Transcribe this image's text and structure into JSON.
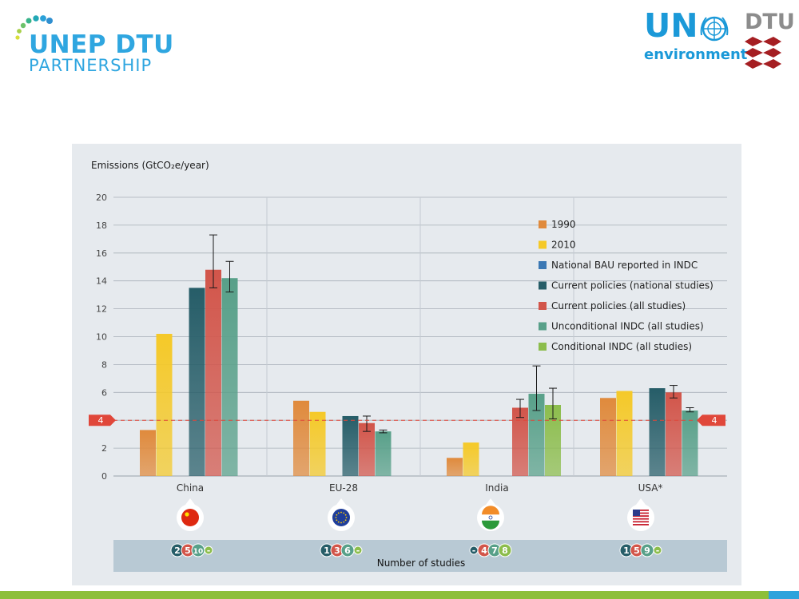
{
  "header": {
    "unep_line1": "UNEP DTU",
    "unep_line2": "PARTNERSHIP",
    "un_text": "UN",
    "env_text": "environment",
    "dtu_text": "DTU"
  },
  "colors": {
    "c1990": "#e08a3c",
    "c2010": "#f5c928",
    "bau": "#3b78b4",
    "cur_nat": "#265d68",
    "cur_all": "#d2554a",
    "uncond": "#58a089",
    "cond": "#8cbd4c",
    "panel": "#e6eaee",
    "grid": "#a8b0b8",
    "ref_line": "#e0473a",
    "studies_band": "#b8c9d4"
  },
  "chart_data": {
    "type": "bar",
    "ylabel": "Emissions (GtCO₂e/year)",
    "ylim": [
      0,
      20
    ],
    "yticks": [
      "0",
      "2",
      "4",
      "6",
      "8",
      "10",
      "12",
      "14",
      "16",
      "18",
      "20"
    ],
    "grid": true,
    "legend_position": "right",
    "categories": [
      "China",
      "EU-28",
      "India",
      "USA*"
    ],
    "series": [
      {
        "key": "c1990",
        "name": "1990",
        "values": [
          3.3,
          5.4,
          1.3,
          5.6
        ]
      },
      {
        "key": "c2010",
        "name": "2010",
        "values": [
          10.2,
          4.6,
          2.4,
          6.1
        ]
      },
      {
        "key": "bau",
        "name": "National BAU reported in INDC",
        "values": [
          null,
          null,
          null,
          null
        ]
      },
      {
        "key": "cur_nat",
        "name": "Current policies (national studies)",
        "values": [
          13.5,
          4.3,
          null,
          6.3
        ]
      },
      {
        "key": "cur_all",
        "name": "Current policies (all studies)",
        "values": [
          14.8,
          3.8,
          4.9,
          6.0
        ]
      },
      {
        "key": "uncond",
        "name": "Unconditional INDC (all studies)",
        "values": [
          14.2,
          3.2,
          5.9,
          4.7
        ]
      },
      {
        "key": "cond",
        "name": "Conditional INDC (all studies)",
        "values": [
          null,
          null,
          5.1,
          null
        ]
      }
    ],
    "error_bars": [
      {
        "category": 0,
        "series": "cur_all",
        "low": 13.5,
        "high": 17.3
      },
      {
        "category": 0,
        "series": "uncond",
        "low": 13.2,
        "high": 15.4
      },
      {
        "category": 1,
        "series": "cur_all",
        "low": 3.2,
        "high": 4.3
      },
      {
        "category": 1,
        "series": "uncond",
        "low": 3.1,
        "high": 3.3
      },
      {
        "category": 2,
        "series": "cur_all",
        "low": 4.2,
        "high": 5.5
      },
      {
        "category": 2,
        "series": "uncond",
        "low": 4.7,
        "high": 7.9
      },
      {
        "category": 2,
        "series": "cond",
        "low": 4.1,
        "high": 6.3
      },
      {
        "category": 3,
        "series": "cur_all",
        "low": 5.6,
        "high": 6.5
      },
      {
        "category": 3,
        "series": "uncond",
        "low": 4.6,
        "high": 4.9
      }
    ],
    "reference_line": {
      "value": 4,
      "label": "4"
    },
    "studies_label": "Number of studies",
    "studies": [
      [
        "2",
        "5",
        "10",
        "-"
      ],
      [
        "1",
        "3",
        "6",
        "-"
      ],
      [
        "-",
        "4",
        "7",
        "8"
      ],
      [
        "1",
        "5",
        "9",
        "-"
      ]
    ],
    "flags": [
      "china-flag-icon",
      "eu-flag-icon",
      "india-flag-icon",
      "usa-flag-icon"
    ]
  }
}
